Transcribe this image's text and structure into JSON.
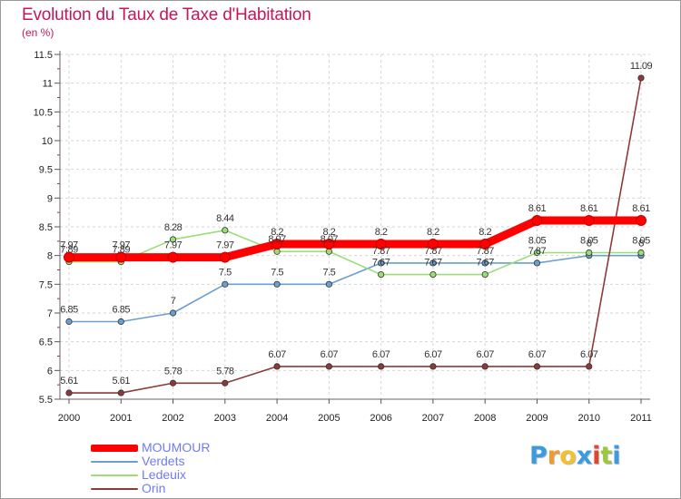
{
  "chart_data": {
    "type": "line",
    "title": "Evolution du Taux de Taxe d'Habitation",
    "subtitle": "(en %)",
    "xlabel": "",
    "ylabel": "",
    "x": [
      "2000",
      "2001",
      "2002",
      "2003",
      "2004",
      "2005",
      "2006",
      "2007",
      "2008",
      "2009",
      "2010",
      "2011"
    ],
    "ylim": [
      5.5,
      11.5
    ],
    "yticks": [
      "5.5",
      "6",
      "6.5",
      "7",
      "7.5",
      "8",
      "8.5",
      "9",
      "9.5",
      "10",
      "10.5",
      "11",
      "11.5"
    ],
    "grid": true,
    "legend_position": "bottom-left",
    "series": [
      {
        "name": "MOUMOUR",
        "color": "#ff0000",
        "values": [
          7.97,
          7.97,
          7.97,
          7.97,
          8.2,
          8.2,
          8.2,
          8.2,
          8.2,
          8.61,
          8.61,
          8.61
        ],
        "labels": [
          "7.97",
          "7.97",
          "7.97",
          "7.97",
          "8.2",
          "8.2",
          "8.2",
          "8.2",
          "8.2",
          "8.61",
          "8.61",
          "8.61"
        ]
      },
      {
        "name": "Verdets",
        "color": "#6a9fcf",
        "values": [
          6.85,
          6.85,
          7.0,
          7.5,
          7.5,
          7.5,
          7.87,
          7.87,
          7.87,
          7.87,
          8.0,
          8.0
        ],
        "labels": [
          "6.85",
          "6.85",
          "7",
          "7.5",
          "7.5",
          "7.5",
          "7.87",
          "7.87",
          "7.87",
          "7.87",
          "8",
          "8"
        ]
      },
      {
        "name": "Ledeuix",
        "color": "#9bdd77",
        "values": [
          7.89,
          7.89,
          8.28,
          8.44,
          8.07,
          8.07,
          7.67,
          7.67,
          7.67,
          8.05,
          8.05,
          8.05
        ],
        "labels": [
          "7.89",
          "7.89",
          "8.28",
          "8.44",
          "8.07",
          "8.07",
          "7.67",
          "7.67",
          "7.67",
          "8.05",
          "8.05",
          "8.05"
        ]
      },
      {
        "name": "Orin",
        "color": "#8b3a3a",
        "values": [
          5.61,
          5.61,
          5.78,
          5.78,
          6.07,
          6.07,
          6.07,
          6.07,
          6.07,
          6.07,
          6.07,
          11.09
        ],
        "labels": [
          "5.61",
          "5.61",
          "5.78",
          "5.78",
          "6.07",
          "6.07",
          "6.07",
          "6.07",
          "6.07",
          "6.07",
          "6.07",
          "11.09"
        ]
      }
    ]
  },
  "logo": {
    "letters": [
      "P",
      "r",
      "o",
      "x",
      "i",
      "t",
      "i"
    ],
    "colors": [
      "#3b9be0",
      "#f29a2e",
      "#f2c12e",
      "#3b9be0",
      "#e0472e",
      "#9ac93b",
      "#3b9be0"
    ]
  }
}
